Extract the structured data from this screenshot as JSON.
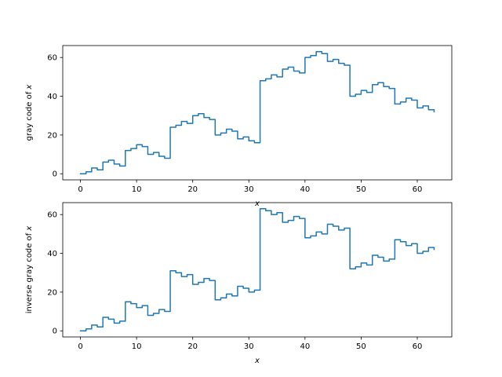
{
  "colors": {
    "series": "#1f77b4",
    "axes": "#000000",
    "background": "#ffffff"
  },
  "chart_data": [
    {
      "type": "line",
      "step": "post",
      "xlabel": "x",
      "ylabel": "gray code of x",
      "xlim": [
        -3.15,
        66.15
      ],
      "ylim": [
        -3.15,
        66.15
      ],
      "xticks": [
        0,
        10,
        20,
        30,
        40,
        50,
        60
      ],
      "yticks": [
        0,
        20,
        40,
        60
      ],
      "grid": false,
      "x": [
        0,
        1,
        2,
        3,
        4,
        5,
        6,
        7,
        8,
        9,
        10,
        11,
        12,
        13,
        14,
        15,
        16,
        17,
        18,
        19,
        20,
        21,
        22,
        23,
        24,
        25,
        26,
        27,
        28,
        29,
        30,
        31,
        32,
        33,
        34,
        35,
        36,
        37,
        38,
        39,
        40,
        41,
        42,
        43,
        44,
        45,
        46,
        47,
        48,
        49,
        50,
        51,
        52,
        53,
        54,
        55,
        56,
        57,
        58,
        59,
        60,
        61,
        62,
        63
      ],
      "y": [
        0,
        1,
        3,
        2,
        6,
        7,
        5,
        4,
        12,
        13,
        15,
        14,
        10,
        11,
        9,
        8,
        24,
        25,
        27,
        26,
        30,
        31,
        29,
        28,
        20,
        21,
        23,
        22,
        18,
        19,
        17,
        16,
        48,
        49,
        51,
        50,
        54,
        55,
        53,
        52,
        60,
        61,
        63,
        62,
        58,
        59,
        57,
        56,
        40,
        41,
        43,
        42,
        46,
        47,
        45,
        44,
        36,
        37,
        39,
        38,
        34,
        35,
        33,
        32
      ]
    },
    {
      "type": "line",
      "step": "post",
      "xlabel": "x",
      "ylabel": "inverse gray code of x",
      "xlim": [
        -3.15,
        66.15
      ],
      "ylim": [
        -3.15,
        66.15
      ],
      "xticks": [
        0,
        10,
        20,
        30,
        40,
        50,
        60
      ],
      "yticks": [
        0,
        20,
        40,
        60
      ],
      "grid": false,
      "x": [
        0,
        1,
        2,
        3,
        4,
        5,
        6,
        7,
        8,
        9,
        10,
        11,
        12,
        13,
        14,
        15,
        16,
        17,
        18,
        19,
        20,
        21,
        22,
        23,
        24,
        25,
        26,
        27,
        28,
        29,
        30,
        31,
        32,
        33,
        34,
        35,
        36,
        37,
        38,
        39,
        40,
        41,
        42,
        43,
        44,
        45,
        46,
        47,
        48,
        49,
        50,
        51,
        52,
        53,
        54,
        55,
        56,
        57,
        58,
        59,
        60,
        61,
        62,
        63
      ],
      "y": [
        0,
        1,
        3,
        2,
        7,
        6,
        4,
        5,
        15,
        14,
        12,
        13,
        8,
        9,
        11,
        10,
        31,
        30,
        28,
        29,
        24,
        25,
        27,
        26,
        16,
        17,
        19,
        18,
        23,
        22,
        20,
        21,
        63,
        62,
        60,
        61,
        56,
        57,
        59,
        58,
        48,
        49,
        51,
        50,
        55,
        54,
        52,
        53,
        32,
        33,
        35,
        34,
        39,
        38,
        36,
        37,
        47,
        46,
        44,
        45,
        40,
        41,
        43,
        42
      ]
    }
  ]
}
